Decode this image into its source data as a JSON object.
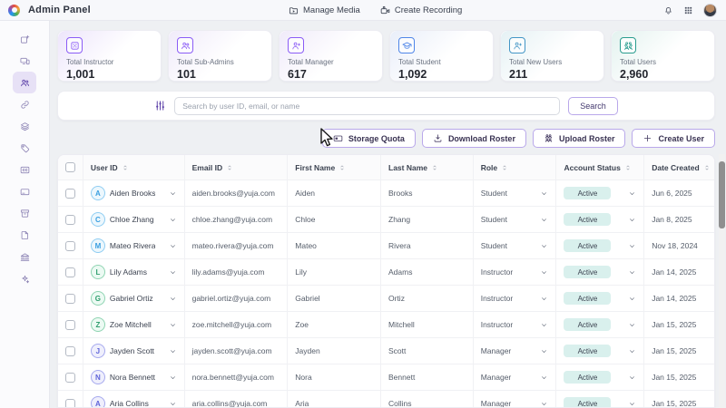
{
  "theme": {
    "accent_purple": "#5b3fa8",
    "button_border": "#b9a8ea",
    "active_badge_bg": "#d9f0ed",
    "page_bg": "#eef0f3",
    "panel_bg": "#ffffff"
  },
  "header": {
    "app_title": "Admin Panel",
    "manage_media_label": "Manage Media",
    "create_recording_label": "Create Recording"
  },
  "sidebar": {
    "items": [
      {
        "icon": "window-plus-icon",
        "active": false
      },
      {
        "icon": "devices-icon",
        "active": false
      },
      {
        "icon": "users-icon",
        "active": true
      },
      {
        "icon": "link-icon",
        "active": false
      },
      {
        "icon": "layers-icon",
        "active": false
      },
      {
        "icon": "tag-icon",
        "active": false
      },
      {
        "icon": "closed-caption-icon",
        "active": false
      },
      {
        "icon": "card-icon",
        "active": false
      },
      {
        "icon": "archive-icon",
        "active": false
      },
      {
        "icon": "file-icon",
        "active": false
      },
      {
        "icon": "bank-icon",
        "active": false
      },
      {
        "icon": "sparkles-icon",
        "active": false
      }
    ]
  },
  "stats": {
    "cards": [
      {
        "label": "Total Instructor",
        "value": "1,001",
        "icon": "instructor-board-icon",
        "accent": "#8b5cf6",
        "tint": "#ede5fb"
      },
      {
        "label": "Total Sub-Admins",
        "value": "101",
        "icon": "sub-admins-icon",
        "accent": "#8b5cf6",
        "tint": "#f0ebfa"
      },
      {
        "label": "Total Manager",
        "value": "617",
        "icon": "manager-plus-icon",
        "accent": "#8b5cf6",
        "tint": "#f0ebfa"
      },
      {
        "label": "Total Student",
        "value": "1,092",
        "icon": "graduation-cap-icon",
        "accent": "#4f86e8",
        "tint": "#e9eef9"
      },
      {
        "label": "Total New Users",
        "value": "211",
        "icon": "person-plus-icon",
        "accent": "#4396c6",
        "tint": "#e5f1f4"
      },
      {
        "label": "Total Users",
        "value": "2,960",
        "icon": "users-group-icon",
        "accent": "#2a9d8f",
        "tint": "#e3f2ef"
      }
    ]
  },
  "search": {
    "placeholder": "Search by user ID, email, or name",
    "button_label": "Search"
  },
  "toolbar": {
    "buttons": [
      {
        "label": "Storage Quota",
        "icon": "storage-icon"
      },
      {
        "label": "Download Roster",
        "icon": "download-icon"
      },
      {
        "label": "Upload Roster",
        "icon": "roster-icon"
      },
      {
        "label": "Create User",
        "icon": "plus-icon"
      }
    ]
  },
  "table": {
    "columns": [
      "User ID",
      "Email ID",
      "First Name",
      "Last Name",
      "Role",
      "Account Status",
      "Date Created"
    ],
    "rows": [
      {
        "initial": "A",
        "name": "Aiden Brooks",
        "email": "aiden.brooks@yuja.com",
        "first": "Aiden",
        "last": "Brooks",
        "role": "Student",
        "status": "Active",
        "date": "Jun 6, 2025"
      },
      {
        "initial": "C",
        "name": "Chloe Zhang",
        "email": "chloe.zhang@yuja.com",
        "first": "Chloe",
        "last": "Zhang",
        "role": "Student",
        "status": "Active",
        "date": "Jan 8, 2025"
      },
      {
        "initial": "M",
        "name": "Mateo Rivera",
        "email": "mateo.rivera@yuja.com",
        "first": "Mateo",
        "last": "Rivera",
        "role": "Student",
        "status": "Active",
        "date": "Nov 18, 2024"
      },
      {
        "initial": "L",
        "name": "Lily Adams",
        "email": "lily.adams@yuja.com",
        "first": "Lily",
        "last": "Adams",
        "role": "Instructor",
        "status": "Active",
        "date": "Jan 14, 2025"
      },
      {
        "initial": "G",
        "name": "Gabriel Ortiz",
        "email": "gabriel.ortiz@yuja.com",
        "first": "Gabriel",
        "last": "Ortiz",
        "role": "Instructor",
        "status": "Active",
        "date": "Jan 14, 2025"
      },
      {
        "initial": "Z",
        "name": "Zoe Mitchell",
        "email": "zoe.mitchell@yuja.com",
        "first": "Zoe",
        "last": "Mitchell",
        "role": "Instructor",
        "status": "Active",
        "date": "Jan 15, 2025"
      },
      {
        "initial": "J",
        "name": "Jayden Scott",
        "email": "jayden.scott@yuja.com",
        "first": "Jayden",
        "last": "Scott",
        "role": "Manager",
        "status": "Active",
        "date": "Jan 15, 2025"
      },
      {
        "initial": "N",
        "name": "Nora Bennett",
        "email": "nora.bennett@yuja.com",
        "first": "Nora",
        "last": "Bennett",
        "role": "Manager",
        "status": "Active",
        "date": "Jan 15, 2025"
      },
      {
        "initial": "A",
        "name": "Aria Collins",
        "email": "aria.collins@yuja.com",
        "first": "Aria",
        "last": "Collins",
        "role": "Manager",
        "status": "Active",
        "date": "Jan 15, 2025"
      }
    ]
  }
}
